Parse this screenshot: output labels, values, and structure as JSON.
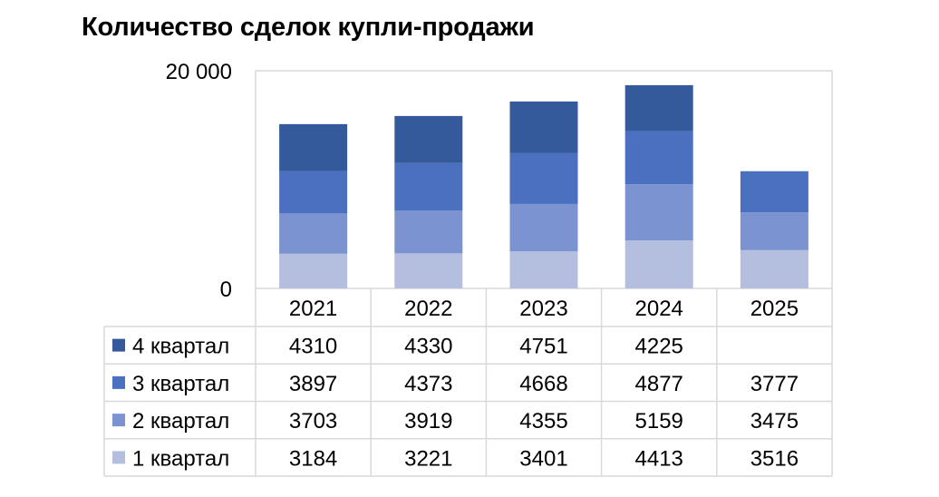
{
  "chart_data": {
    "type": "bar",
    "stacked": true,
    "title": "Количество сделок купли-продажи",
    "categories": [
      "2021",
      "2022",
      "2023",
      "2024",
      "2025"
    ],
    "series": [
      {
        "name": "1 квартал",
        "values": [
          3184,
          3221,
          3401,
          4413,
          3516
        ],
        "color": "#b4bfdf"
      },
      {
        "name": "2 квартал",
        "values": [
          3703,
          3919,
          4355,
          5159,
          3475
        ],
        "color": "#7b93d0"
      },
      {
        "name": "3 квартал",
        "values": [
          3897,
          4373,
          4668,
          4877,
          3777
        ],
        "color": "#4a70bf"
      },
      {
        "name": "4 квартал",
        "values": [
          4310,
          4330,
          4751,
          4225,
          null
        ],
        "color": "#355a9b"
      }
    ],
    "y_tick_labels": [
      "0",
      "20 000"
    ],
    "ylim": [
      0,
      20000
    ],
    "grid": false,
    "legend": "data-table",
    "data_table": true
  }
}
